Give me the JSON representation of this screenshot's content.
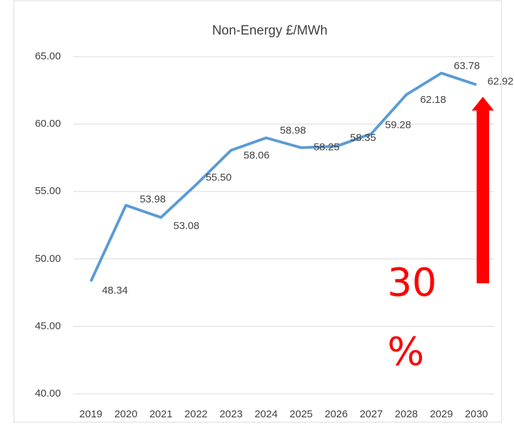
{
  "chart_data": {
    "type": "line",
    "title": "Non-Energy £/MWh",
    "categories": [
      "2019",
      "2020",
      "2021",
      "2022",
      "2023",
      "2024",
      "2025",
      "2026",
      "2027",
      "2028",
      "2029",
      "2030"
    ],
    "series": [
      {
        "name": "Non-Energy £/MWh",
        "color": "#5b9bd5",
        "values": [
          48.34,
          53.98,
          53.08,
          55.5,
          58.06,
          58.98,
          58.25,
          58.35,
          59.28,
          62.18,
          63.78,
          62.92
        ],
        "value_labels": [
          "48.34",
          "53.98",
          "53.08",
          "55.50",
          "58.06",
          "58.98",
          "58.25",
          "58.35",
          "59.28",
          "62.18",
          "63.78",
          "62.92"
        ]
      }
    ],
    "ylim": [
      40,
      65
    ],
    "yticks": [
      {
        "value": 40,
        "label": "40.00"
      },
      {
        "value": 45,
        "label": "45.00"
      },
      {
        "value": 50,
        "label": "50.00"
      },
      {
        "value": 55,
        "label": "55.00"
      },
      {
        "value": 60,
        "label": "60.00"
      },
      {
        "value": 65,
        "label": "65.00"
      }
    ],
    "grid": true,
    "annotation": "30 %"
  }
}
